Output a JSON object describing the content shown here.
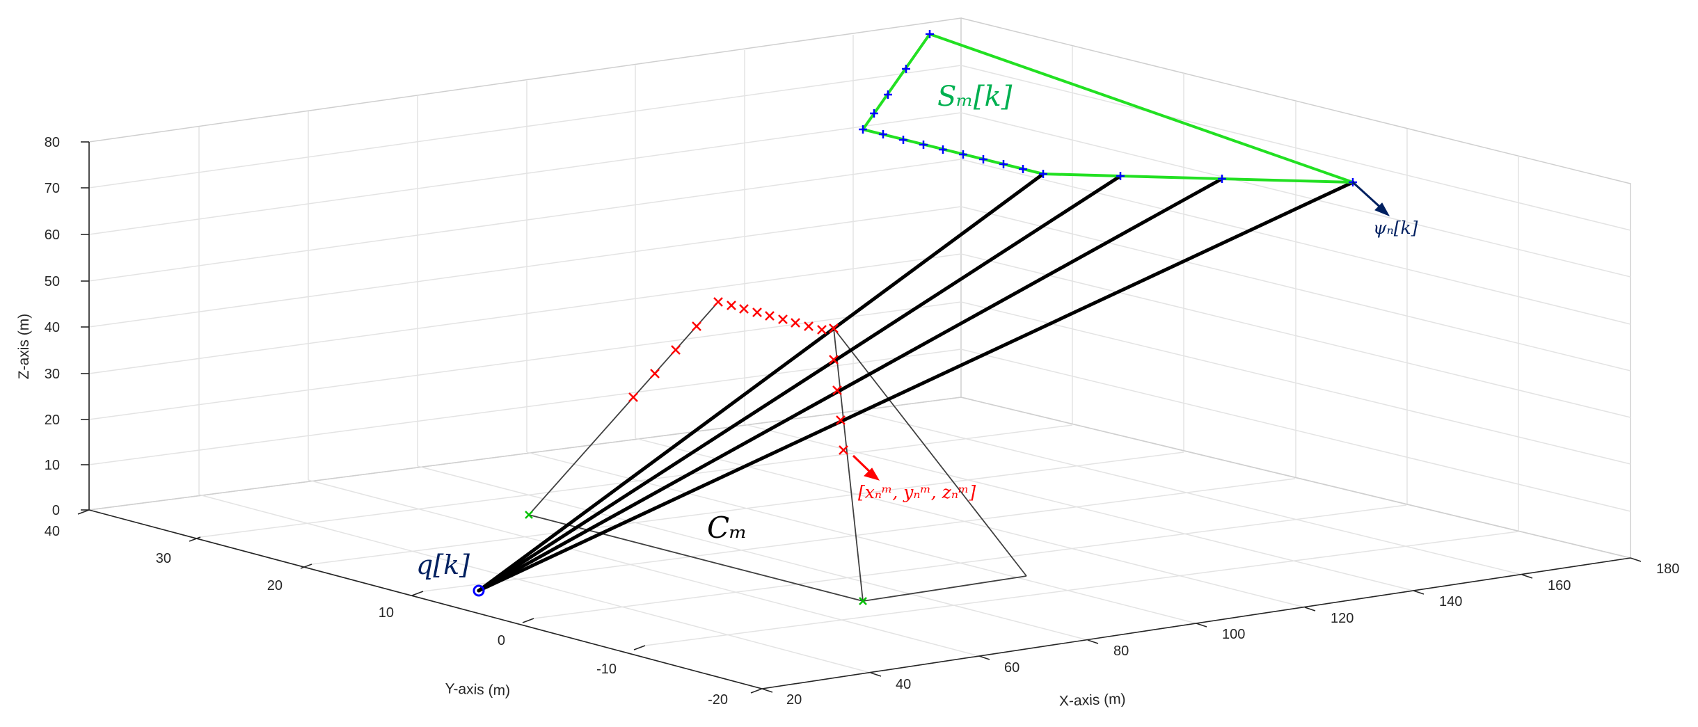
{
  "chart_data": {
    "type": "scatter",
    "view": "3d",
    "axes": {
      "x": {
        "label": "X-axis (m)",
        "range": [
          20,
          180
        ],
        "ticks": [
          20,
          40,
          60,
          80,
          100,
          120,
          140,
          160,
          180
        ]
      },
      "y": {
        "label": "Y-axis (m)",
        "range": [
          -20,
          40
        ],
        "ticks": [
          -20,
          -10,
          0,
          10,
          20,
          30,
          40
        ]
      },
      "z": {
        "label": "Z-axis (m)",
        "range": [
          0,
          80
        ],
        "ticks": [
          0,
          10,
          20,
          30,
          40,
          50,
          60,
          70,
          80
        ]
      }
    },
    "grid": true,
    "annotations": {
      "surface_label": {
        "text": "Sₘ[k]",
        "color": "#00b050"
      },
      "cone_label": {
        "text": "Cₘ",
        "color": "#000000"
      },
      "user_label": {
        "text": "q[k]",
        "color": "#002060"
      },
      "direction_label": {
        "text": "ψₙ[k]",
        "color": "#002060"
      },
      "point_label": {
        "text": "[xₙᵐ, yₙᵐ, zₙᵐ]",
        "color": "#ff0000"
      }
    },
    "colors": {
      "surface_line": "#22e022",
      "surface_marker": "#0000ff",
      "red_marker": "#ff0000",
      "rays": "#000000",
      "cone_edges": "#404040",
      "ground_marker": "#00c000",
      "user_marker": "#0000ff",
      "direction_arrow": "#002060",
      "point_arrow": "#ff0000"
    },
    "series": [
      {
        "role": "user",
        "points": [
          [
            25,
            5,
            0
          ]
        ]
      },
      {
        "role": "surface",
        "points": [
          [
            147,
            40,
            71
          ],
          [
            170,
            40,
            68
          ],
          [
            133,
            40,
            79
          ],
          [
            140,
            26,
            66
          ],
          [
            147,
            15,
            64
          ],
          [
            155,
            1,
            71
          ],
          [
            143,
            -4,
            70
          ],
          [
            136,
            -3,
            68
          ],
          [
            127,
            -1,
            64
          ],
          [
            117,
            0,
            61
          ],
          [
            106,
            1,
            58
          ],
          [
            96,
            2,
            55
          ],
          [
            85,
            6,
            53
          ],
          [
            73,
            14,
            42
          ],
          [
            62,
            21,
            34
          ]
        ]
      },
      {
        "role": "rays",
        "points": [
          [
            80,
            32,
            75
          ],
          [
            106,
            20,
            76
          ],
          [
            124,
            8,
            80
          ],
          [
            155,
            0,
            76
          ]
        ]
      }
    ]
  }
}
